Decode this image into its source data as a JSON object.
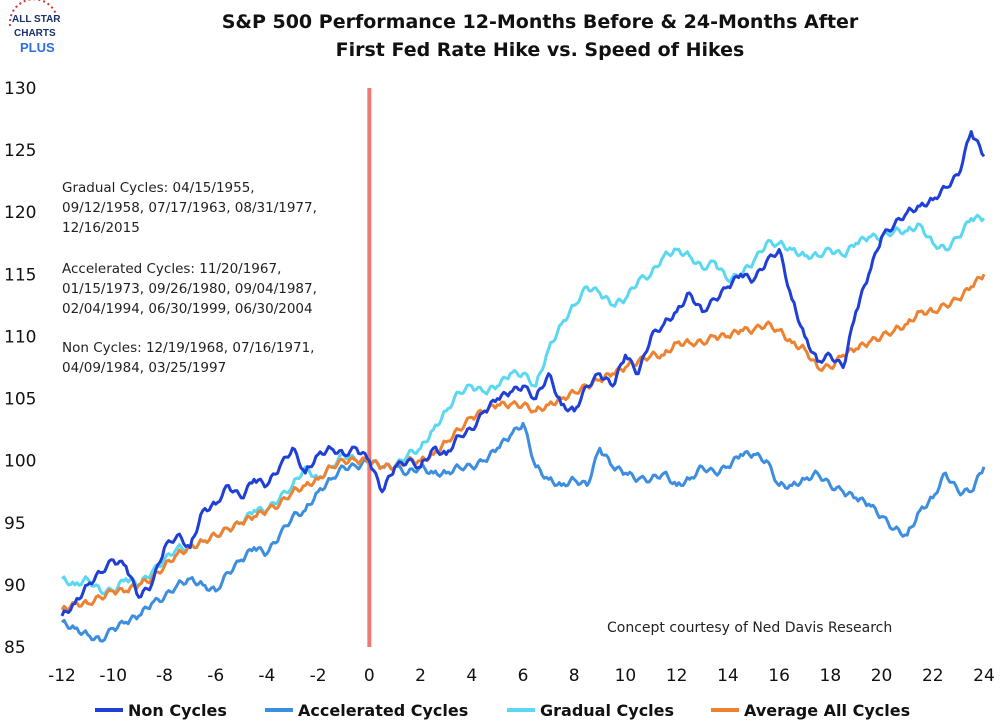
{
  "logo": {
    "line1": "ALL STAR",
    "line2": "CHARTS",
    "line3": "PLUS"
  },
  "chart_data": {
    "type": "line",
    "title": "S&P 500 Performance 12-Months Before & 24-Months After First Fed Rate Hike vs. Speed of Hikes",
    "title_lines": [
      "S&P 500 Performance 12-Months Before & 24-Months After",
      "First Fed Rate Hike vs. Speed of Hikes"
    ],
    "xlabel": "",
    "ylabel": "",
    "xlim": [
      -12,
      24
    ],
    "ylim": [
      85,
      130
    ],
    "xticks": [
      -12,
      -10,
      -8,
      -6,
      -4,
      -2,
      0,
      2,
      4,
      6,
      8,
      10,
      12,
      14,
      16,
      18,
      20,
      22,
      24
    ],
    "yticks": [
      85,
      90,
      95,
      100,
      105,
      110,
      115,
      120,
      125,
      130
    ],
    "grid": false,
    "legend_position": "bottom",
    "vline": {
      "x": 0,
      "color": "#f07a72"
    },
    "annotations": {
      "gradual": [
        "Gradual Cycles: 04/15/1955,",
        "09/12/1958, 07/17/1963, 08/31/1977,",
        "12/16/2015"
      ],
      "accelerated": [
        "Accelerated Cycles: 11/20/1967,",
        "01/15/1973, 09/26/1980, 09/04/1987,",
        "02/04/1994, 06/30/1999, 06/30/2004"
      ],
      "non": [
        "Non Cycles: 12/19/1968, 07/16/1971,",
        "04/09/1984, 03/25/1997"
      ],
      "credit": "Concept courtesy of Ned Davis Research"
    },
    "series": [
      {
        "name": "Non Cycles",
        "color": "#1f3fd6",
        "x": [
          -12,
          -11.5,
          -11,
          -10.5,
          -10,
          -9.5,
          -9,
          -8.5,
          -8,
          -7.5,
          -7,
          -6.5,
          -6,
          -5.5,
          -5,
          -4.5,
          -4,
          -3.5,
          -3,
          -2.5,
          -2,
          -1.5,
          -1,
          -0.5,
          0,
          0.5,
          1,
          1.5,
          2,
          2.5,
          3,
          3.5,
          4,
          4.5,
          5,
          5.5,
          6,
          6.5,
          7,
          7.5,
          8,
          8.5,
          9,
          9.5,
          10,
          10.5,
          11,
          11.5,
          12,
          12.5,
          13,
          13.5,
          14,
          14.5,
          15,
          15.5,
          16,
          16.5,
          17,
          17.5,
          18,
          18.5,
          19,
          19.5,
          20,
          20.5,
          21,
          21.5,
          22,
          22.5,
          23,
          23.5,
          24
        ],
        "y": [
          87.5,
          88.5,
          90,
          91,
          92,
          91.5,
          89,
          90,
          93,
          94,
          93,
          96,
          96.5,
          98,
          97,
          98.5,
          98,
          99.5,
          101,
          99,
          100.5,
          101,
          100.5,
          101,
          100,
          97.5,
          99.5,
          100,
          99.5,
          101,
          100.5,
          102,
          102.5,
          104,
          105,
          105.5,
          106,
          105,
          107,
          104.5,
          104,
          106,
          107,
          106,
          108.5,
          107,
          110,
          111,
          112,
          113.5,
          112,
          113,
          114,
          115,
          114.5,
          116,
          117,
          113,
          110,
          108,
          108.5,
          107.5,
          112,
          115,
          118,
          119,
          120,
          120.5,
          121,
          122,
          123,
          126.5,
          124.5
        ]
      },
      {
        "name": "Accelerated Cycles",
        "color": "#3d8ee0",
        "x": [
          -12,
          -11.5,
          -11,
          -10.5,
          -10,
          -9.5,
          -9,
          -8.5,
          -8,
          -7.5,
          -7,
          -6.5,
          -6,
          -5.5,
          -5,
          -4.5,
          -4,
          -3.5,
          -3,
          -2.5,
          -2,
          -1.5,
          -1,
          -0.5,
          0,
          0.5,
          1,
          1.5,
          2,
          2.5,
          3,
          3.5,
          4,
          4.5,
          5,
          5.5,
          6,
          6.5,
          7,
          7.5,
          8,
          8.5,
          9,
          9.5,
          10,
          10.5,
          11,
          11.5,
          12,
          12.5,
          13,
          13.5,
          14,
          14.5,
          15,
          15.5,
          16,
          16.5,
          17,
          17.5,
          18,
          18.5,
          19,
          19.5,
          20,
          20.5,
          21,
          21.5,
          22,
          22.5,
          23,
          23.5,
          24
        ],
        "y": [
          87,
          86.5,
          86,
          85.5,
          86.5,
          87,
          87.5,
          88.5,
          89,
          90,
          90.5,
          90,
          89.5,
          91,
          92,
          93,
          92.5,
          94,
          95.5,
          96,
          97.5,
          98.5,
          99.5,
          99.5,
          100,
          99.5,
          99.5,
          99,
          99.5,
          99,
          99,
          99.5,
          99.5,
          100,
          101,
          102,
          103,
          99.5,
          98.5,
          98,
          98.5,
          98,
          101,
          99.5,
          99,
          98.5,
          98.5,
          99,
          98,
          98.5,
          99.5,
          99,
          99.5,
          100.5,
          100.5,
          100,
          98,
          98,
          98.5,
          99,
          98,
          97.5,
          97,
          96.5,
          95.5,
          94.5,
          94,
          96,
          97,
          99,
          97.5,
          97.5,
          99.5
        ]
      },
      {
        "name": "Gradual Cycles",
        "color": "#5ad8f2",
        "x": [
          -12,
          -11.5,
          -11,
          -10.5,
          -10,
          -9.5,
          -9,
          -8.5,
          -8,
          -7.5,
          -7,
          -6.5,
          -6,
          -5.5,
          -5,
          -4.5,
          -4,
          -3.5,
          -3,
          -2.5,
          -2,
          -1.5,
          -1,
          -0.5,
          0,
          0.5,
          1,
          1.5,
          2,
          2.5,
          3,
          3.5,
          4,
          4.5,
          5,
          5.5,
          6,
          6.5,
          7,
          7.5,
          8,
          8.5,
          9,
          9.5,
          10,
          10.5,
          11,
          11.5,
          12,
          12.5,
          13,
          13.5,
          14,
          14.5,
          15,
          15.5,
          16,
          16.5,
          17,
          17.5,
          18,
          18.5,
          19,
          19.5,
          20,
          20.5,
          21,
          21.5,
          22,
          22.5,
          23,
          23.5,
          24
        ],
        "y": [
          90.5,
          90,
          90.5,
          89.5,
          89.5,
          90.5,
          90,
          91,
          92,
          93,
          93,
          93.5,
          94,
          94.5,
          95,
          96,
          96,
          97,
          98,
          99.5,
          98.5,
          99.5,
          100.5,
          100,
          100,
          99.5,
          99.5,
          100.5,
          101,
          102.5,
          104,
          105.5,
          106,
          105.5,
          106,
          107,
          107,
          106,
          109,
          111,
          112.5,
          114,
          113.5,
          112.5,
          113,
          114.5,
          115,
          116.5,
          117,
          116.5,
          115.5,
          116,
          114.5,
          115,
          116,
          117.5,
          117.5,
          117,
          116.5,
          116.5,
          117,
          116.5,
          117.5,
          118,
          118,
          118.5,
          118.5,
          119,
          117.5,
          117,
          118,
          119.5,
          119.5
        ]
      },
      {
        "name": "Average All Cycles",
        "color": "#ee8230",
        "x": [
          -12,
          -11.5,
          -11,
          -10.5,
          -10,
          -9.5,
          -9,
          -8.5,
          -8,
          -7.5,
          -7,
          -6.5,
          -6,
          -5.5,
          -5,
          -4.5,
          -4,
          -3.5,
          -3,
          -2.5,
          -2,
          -1.5,
          -1,
          -0.5,
          0,
          0.5,
          1,
          1.5,
          2,
          2.5,
          3,
          3.5,
          4,
          4.5,
          5,
          5.5,
          6,
          6.5,
          7,
          7.5,
          8,
          8.5,
          9,
          9.5,
          10,
          10.5,
          11,
          11.5,
          12,
          12.5,
          13,
          13.5,
          14,
          14.5,
          15,
          15.5,
          16,
          16.5,
          17,
          17.5,
          18,
          18.5,
          19,
          19.5,
          20,
          20.5,
          21,
          21.5,
          22,
          22.5,
          23,
          23.5,
          24
        ],
        "y": [
          88,
          88.5,
          88.5,
          89,
          89.5,
          89.5,
          90,
          90.5,
          91.5,
          92.5,
          93,
          93.5,
          94,
          94.5,
          95,
          95.5,
          96,
          96.5,
          97.5,
          98,
          98.5,
          99.5,
          100,
          100,
          100,
          99.5,
          99.5,
          100,
          100,
          100.5,
          101.5,
          102.5,
          103.5,
          104,
          104.5,
          104.5,
          104.5,
          104,
          104.5,
          105,
          105.5,
          106,
          106.5,
          107,
          107.5,
          108,
          108.5,
          108.5,
          109.5,
          109.5,
          109.5,
          110,
          110,
          110.5,
          110.5,
          111,
          110.5,
          109.5,
          109,
          107.5,
          107.5,
          108.5,
          109,
          109.5,
          110,
          110.5,
          111,
          112,
          112,
          112.5,
          113,
          114,
          115
        ]
      }
    ]
  }
}
